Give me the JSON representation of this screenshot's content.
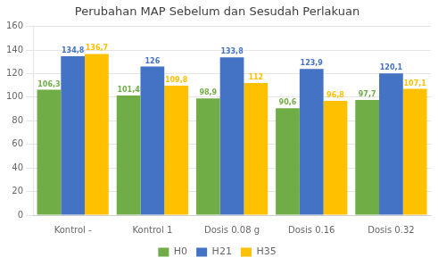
{
  "chart_data": {
    "type": "bar",
    "title": "Perubahan MAP Sebelum dan Sesudah Perlakuan",
    "categories": [
      "Kontrol -",
      "Kontrol 1",
      "Dosis 0.08 g",
      "Dosis 0.16",
      "Dosis 0.32"
    ],
    "series": [
      {
        "name": "H0",
        "color": "#70ad47",
        "values": [
          106.3,
          101.4,
          98.9,
          90.6,
          97.7
        ],
        "value_labels": [
          "106,3",
          "101,4",
          "98,9",
          "90,6",
          "97,7"
        ]
      },
      {
        "name": "H21",
        "color": "#4472c4",
        "values": [
          134.8,
          126.0,
          133.8,
          123.9,
          120.1
        ],
        "value_labels": [
          "134,8",
          "126",
          "133,8",
          "123,9",
          "120,1"
        ]
      },
      {
        "name": "H35",
        "color": "#ffc000",
        "values": [
          136.7,
          109.8,
          112.0,
          96.8,
          107.1
        ],
        "value_labels": [
          "136,7",
          "109,8",
          "112",
          "96,8",
          "107,1"
        ]
      }
    ],
    "ylim": [
      0,
      160
    ],
    "yticks": [
      0,
      20,
      40,
      60,
      80,
      100,
      120,
      140,
      160
    ],
    "grid": true,
    "legend": "bottom",
    "data_labels": true
  }
}
